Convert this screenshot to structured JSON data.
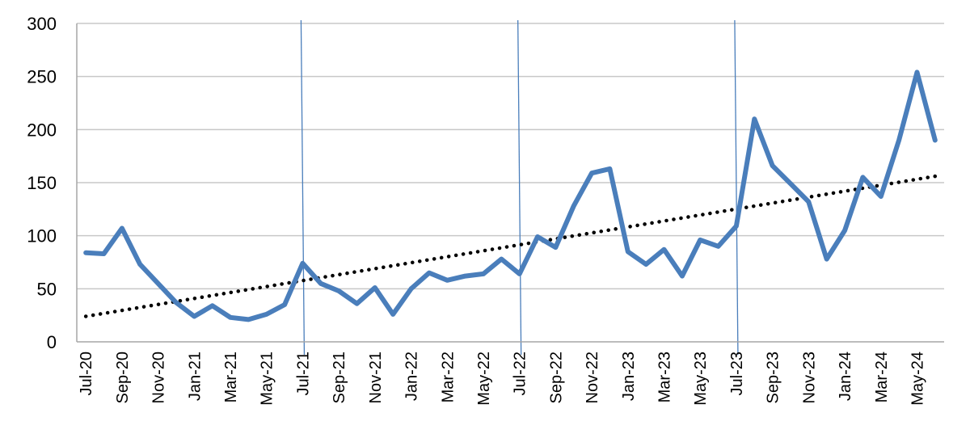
{
  "chart_data": {
    "type": "line",
    "title": "",
    "xlabel": "",
    "ylabel": "",
    "ylim": [
      0,
      300
    ],
    "y_ticks": [
      0,
      50,
      100,
      150,
      200,
      250,
      300
    ],
    "grid": "horizontal",
    "legend": "none",
    "x": [
      "Jul-20",
      "Aug-20",
      "Sep-20",
      "Oct-20",
      "Nov-20",
      "Dec-20",
      "Jan-21",
      "Feb-21",
      "Mar-21",
      "Apr-21",
      "May-21",
      "Jun-21",
      "Jul-21",
      "Aug-21",
      "Sep-21",
      "Oct-21",
      "Nov-21",
      "Dec-21",
      "Jan-22",
      "Feb-22",
      "Mar-22",
      "Apr-22",
      "May-22",
      "Jun-22",
      "Jul-22",
      "Aug-22",
      "Sep-22",
      "Oct-22",
      "Nov-22",
      "Dec-22",
      "Jan-23",
      "Feb-23",
      "Mar-23",
      "Apr-23",
      "May-23",
      "Jun-23",
      "Jul-23",
      "Aug-23",
      "Sep-23",
      "Oct-23",
      "Nov-23",
      "Dec-23",
      "Jan-24",
      "Feb-24",
      "Mar-24",
      "Apr-24",
      "May-24",
      "Jun-24"
    ],
    "x_tick_labels": [
      "Jul-20",
      "Sep-20",
      "Nov-20",
      "Jan-21",
      "Mar-21",
      "May-21",
      "Jul-21",
      "Sep-21",
      "Nov-21",
      "Jan-22",
      "Mar-22",
      "May-22",
      "Jul-22",
      "Sep-22",
      "Nov-22",
      "Jan-23",
      "Mar-23",
      "May-23",
      "Jul-23",
      "Sep-23",
      "Nov-23",
      "Jan-24",
      "Mar-24",
      "May-24"
    ],
    "series": [
      {
        "values": [
          84,
          83,
          107,
          73,
          55,
          37,
          24,
          34,
          23,
          21,
          26,
          35,
          74,
          55,
          48,
          36,
          51,
          26,
          50,
          65,
          58,
          62,
          64,
          78,
          64,
          99,
          89,
          128,
          159,
          163,
          85,
          73,
          87,
          62,
          96,
          90,
          109,
          210,
          166,
          149,
          132,
          78,
          105,
          155,
          137,
          190,
          254,
          190
        ]
      }
    ],
    "trendline": {
      "style": "dotted",
      "start": 24,
      "end": 156
    },
    "vertical_markers": [
      "Jul-21",
      "Jul-22",
      "Jul-23"
    ],
    "colors": {
      "series": "#4a7ebb",
      "trend": "#000000",
      "marker": "#4a7ebb",
      "grid": "#c8c8c8",
      "axis": "#a6a6a6"
    }
  }
}
